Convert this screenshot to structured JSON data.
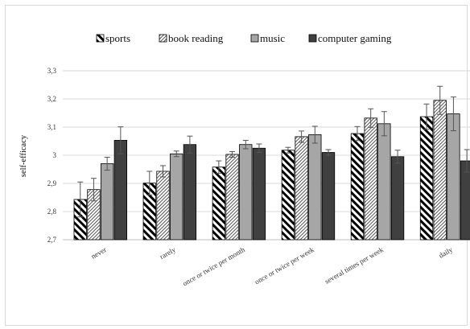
{
  "chart_data": {
    "type": "bar",
    "title": "",
    "xlabel": "",
    "ylabel": "self-efficacy",
    "ylim": [
      2.7,
      3.3
    ],
    "yticks": [
      "2,7",
      "2,8",
      "2,9",
      "3",
      "3,1",
      "3,2",
      "3,3"
    ],
    "grid": true,
    "legend_position": "top",
    "categories": [
      "never",
      "rarely",
      "once or twice per month",
      "once or twice per week",
      "several times per week",
      "daily"
    ],
    "series": [
      {
        "name": "sports",
        "pattern": "diagonal-back",
        "color": "#000000",
        "values": [
          2.843,
          2.901,
          2.958,
          3.018,
          3.077,
          3.137
        ],
        "errors": [
          0.062,
          0.042,
          0.022,
          0.01,
          0.025,
          0.045
        ]
      },
      {
        "name": "book reading",
        "pattern": "diagonal-fine",
        "color": "#555555",
        "values": [
          2.878,
          2.943,
          3.003,
          3.066,
          3.132,
          3.195
        ],
        "errors": [
          0.04,
          0.02,
          0.01,
          0.02,
          0.033,
          0.05
        ]
      },
      {
        "name": "music",
        "pattern": "solid",
        "color": "#a6a6a6",
        "values": [
          2.97,
          3.005,
          3.038,
          3.073,
          3.112,
          3.147
        ],
        "errors": [
          0.023,
          0.01,
          0.015,
          0.03,
          0.043,
          0.06
        ]
      },
      {
        "name": "computer gaming",
        "pattern": "solid",
        "color": "#404040",
        "values": [
          3.053,
          3.038,
          3.025,
          3.01,
          2.995,
          2.98
        ],
        "errors": [
          0.048,
          0.03,
          0.015,
          0.01,
          0.023,
          0.04
        ]
      }
    ]
  }
}
